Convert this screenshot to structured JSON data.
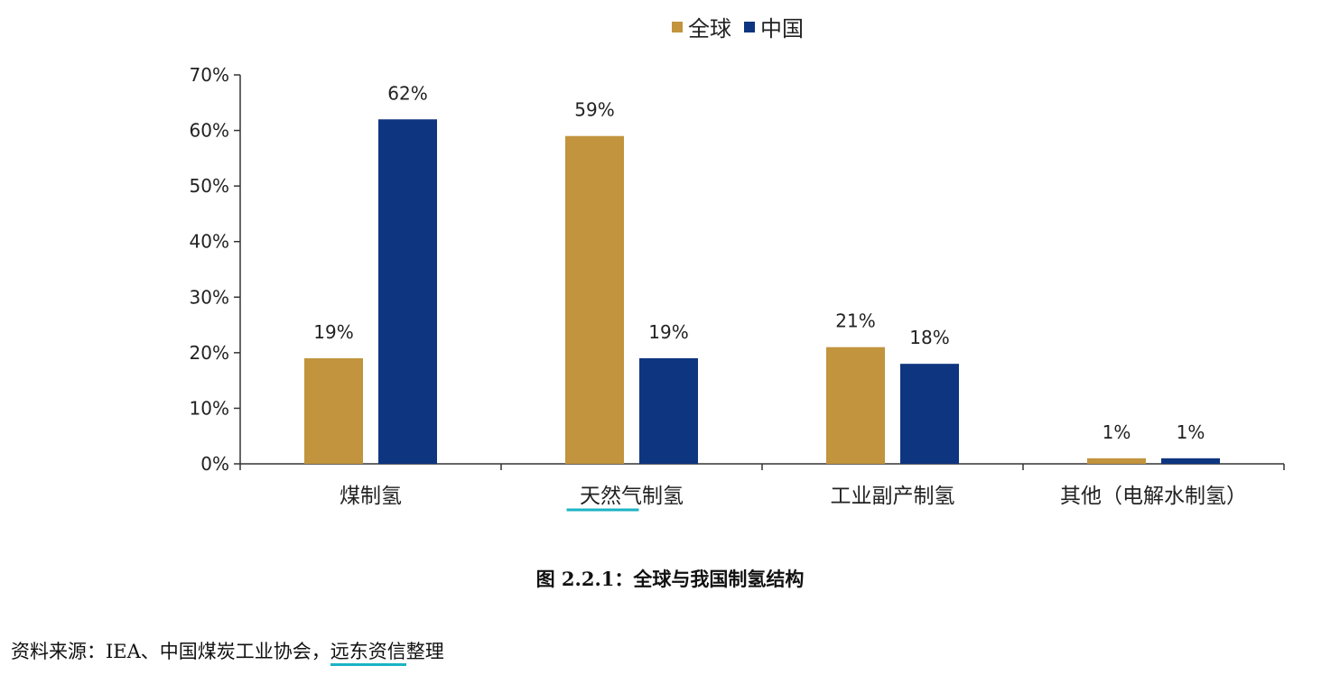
{
  "legend": {
    "items": [
      {
        "label": "全球",
        "color": "#c1943d"
      },
      {
        "label": "中国",
        "color": "#0e3580"
      }
    ]
  },
  "chart_data": {
    "type": "bar",
    "categories": [
      "煤制氢",
      "天然气制氢",
      "工业副产制氢",
      "其他（电解水制氢）"
    ],
    "series": [
      {
        "name": "全球",
        "values": [
          19,
          59,
          21,
          1
        ],
        "labels": [
          "19%",
          "59%",
          "21%",
          "1%"
        ],
        "color": "#c1943d"
      },
      {
        "name": "中国",
        "values": [
          62,
          19,
          18,
          1
        ],
        "labels": [
          "62%",
          "19%",
          "18%",
          "1%"
        ],
        "color": "#0e3580"
      }
    ],
    "ylim": [
      0,
      70
    ],
    "yticks": [
      0,
      10,
      20,
      30,
      40,
      50,
      60,
      70
    ],
    "ytick_labels": [
      "0%",
      "10%",
      "20%",
      "30%",
      "40%",
      "50%",
      "60%",
      "70%"
    ],
    "highlighted_category": "天然气制氢",
    "legend_position": "top-center",
    "grid": false
  },
  "caption": "图 2.2.1：全球与我国制氢结构",
  "source": {
    "prefix": "资料来源：IEA、中国煤炭工业协会，",
    "org": "远东资信",
    "suffix": "整理",
    "underline_color": "#1bb3c4"
  }
}
